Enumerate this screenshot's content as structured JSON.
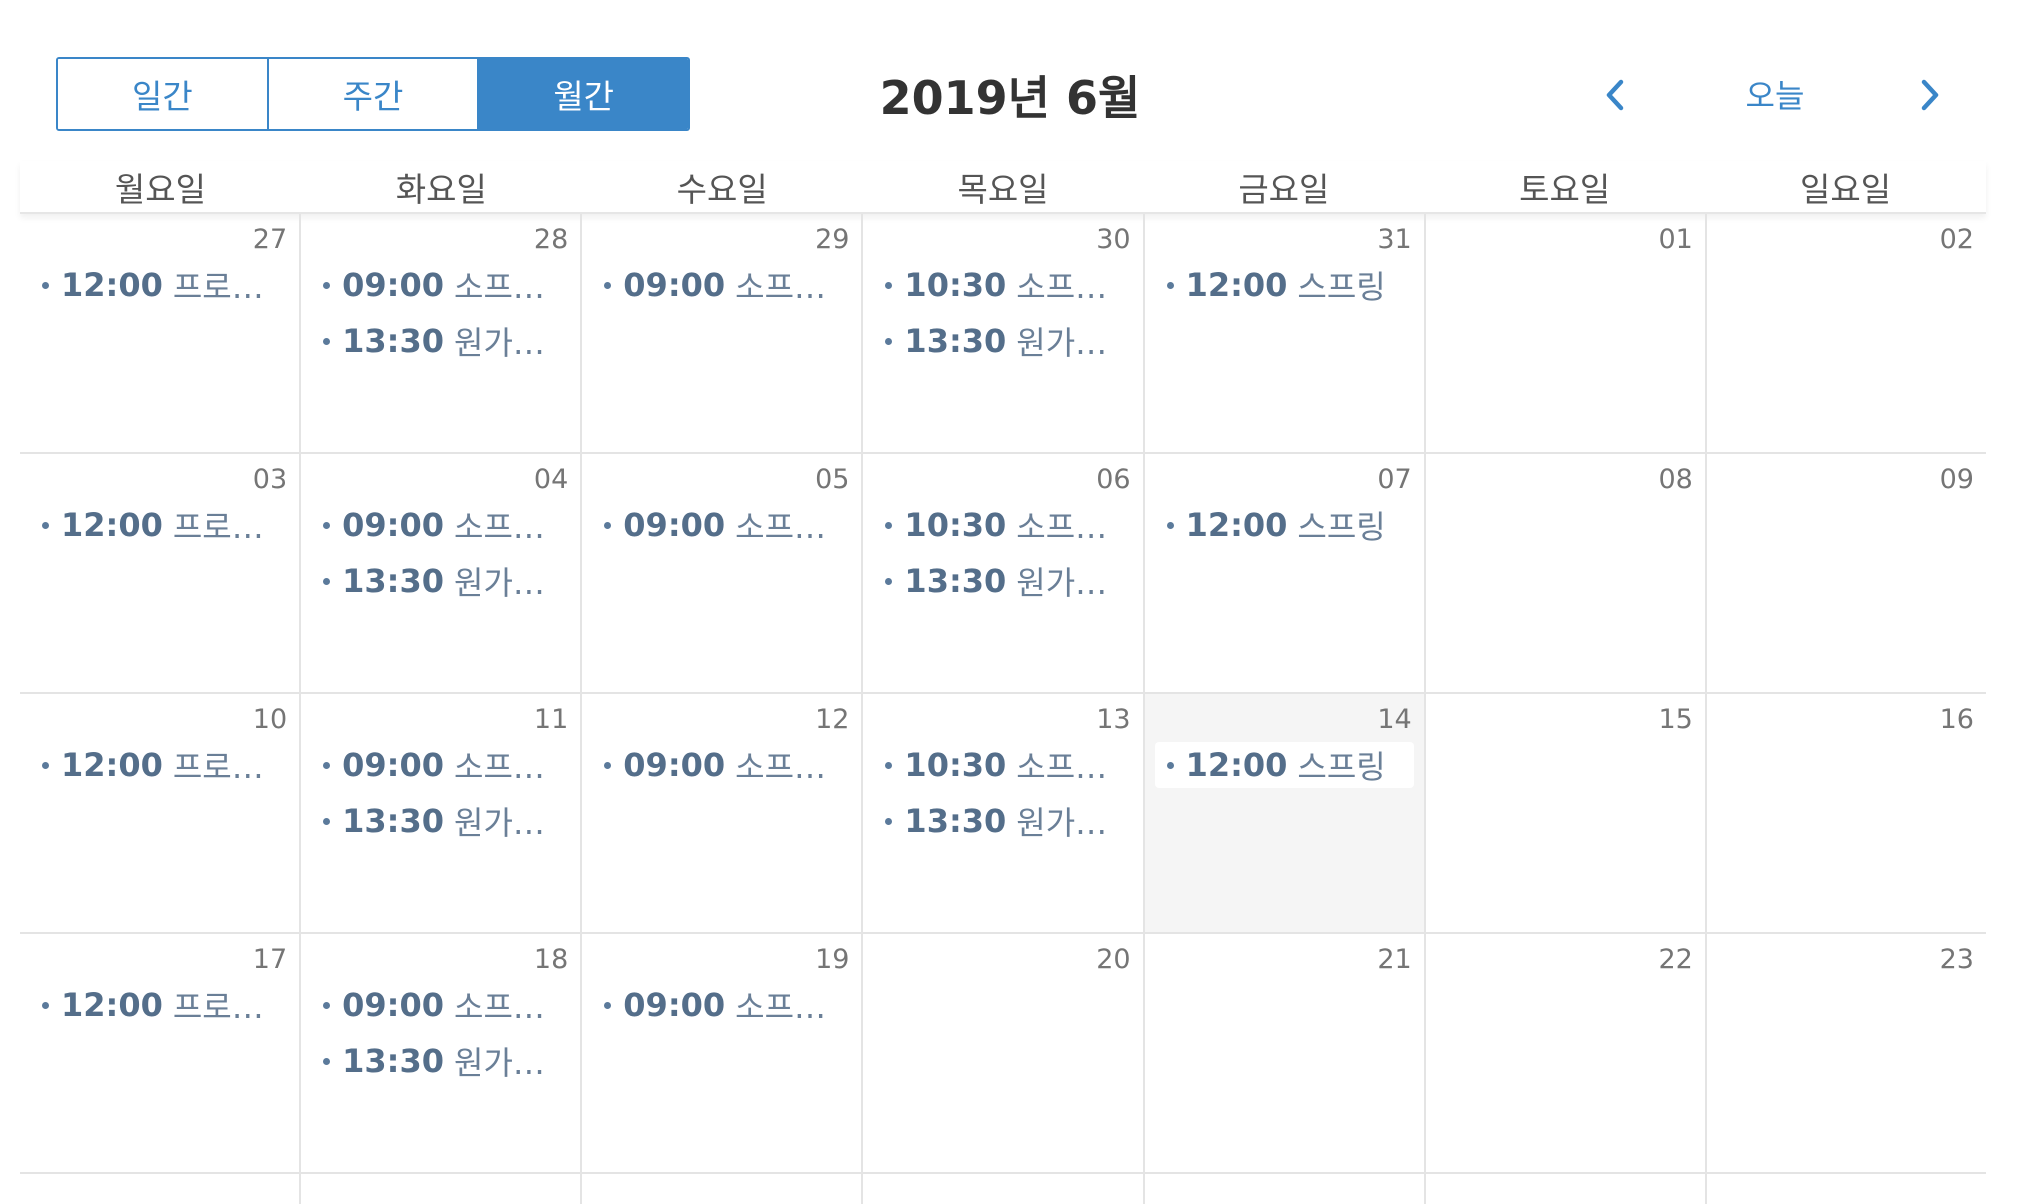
{
  "header": {
    "views": [
      {
        "label": "일간",
        "active": false
      },
      {
        "label": "주간",
        "active": false
      },
      {
        "label": "월간",
        "active": true
      }
    ],
    "title": "2019년 6월",
    "prev_icon": "chevron-left-icon",
    "today_label": "오늘",
    "next_icon": "chevron-right-icon"
  },
  "colors": {
    "accent": "#3a86c8",
    "event_text": "#546e8a",
    "today_bg": "#f5f5f5",
    "grid_line": "#e4e4e4"
  },
  "weekdays": [
    "월요일",
    "화요일",
    "수요일",
    "목요일",
    "금요일",
    "토요일",
    "일요일"
  ],
  "weeks": [
    [
      {
        "day": "27",
        "events": [
          {
            "time": "12:00",
            "title": "프로그래밍"
          }
        ]
      },
      {
        "day": "28",
        "events": [
          {
            "time": "09:00",
            "title": "소프트웨어"
          },
          {
            "time": "13:30",
            "title": "원가회계"
          }
        ]
      },
      {
        "day": "29",
        "events": [
          {
            "time": "09:00",
            "title": "소프트웨어"
          }
        ]
      },
      {
        "day": "30",
        "events": [
          {
            "time": "10:30",
            "title": "소프트웨어"
          },
          {
            "time": "13:30",
            "title": "원가회계"
          }
        ]
      },
      {
        "day": "31",
        "events": [
          {
            "time": "12:00",
            "title": "스프링"
          }
        ]
      },
      {
        "day": "01",
        "events": []
      },
      {
        "day": "02",
        "events": []
      }
    ],
    [
      {
        "day": "03",
        "events": [
          {
            "time": "12:00",
            "title": "프로그래밍"
          }
        ]
      },
      {
        "day": "04",
        "events": [
          {
            "time": "09:00",
            "title": "소프트웨어"
          },
          {
            "time": "13:30",
            "title": "원가회계"
          }
        ]
      },
      {
        "day": "05",
        "events": [
          {
            "time": "09:00",
            "title": "소프트웨어"
          }
        ]
      },
      {
        "day": "06",
        "events": [
          {
            "time": "10:30",
            "title": "소프트웨어"
          },
          {
            "time": "13:30",
            "title": "원가회계"
          }
        ]
      },
      {
        "day": "07",
        "events": [
          {
            "time": "12:00",
            "title": "스프링"
          }
        ]
      },
      {
        "day": "08",
        "events": []
      },
      {
        "day": "09",
        "events": []
      }
    ],
    [
      {
        "day": "10",
        "events": [
          {
            "time": "12:00",
            "title": "프로그래밍"
          }
        ]
      },
      {
        "day": "11",
        "events": [
          {
            "time": "09:00",
            "title": "소프트웨어"
          },
          {
            "time": "13:30",
            "title": "원가회계"
          }
        ]
      },
      {
        "day": "12",
        "events": [
          {
            "time": "09:00",
            "title": "소프트웨어"
          }
        ]
      },
      {
        "day": "13",
        "events": [
          {
            "time": "10:30",
            "title": "소프트웨어"
          },
          {
            "time": "13:30",
            "title": "원가회계"
          }
        ]
      },
      {
        "day": "14",
        "today": true,
        "events": [
          {
            "time": "12:00",
            "title": "스프링"
          }
        ]
      },
      {
        "day": "15",
        "events": []
      },
      {
        "day": "16",
        "events": []
      }
    ],
    [
      {
        "day": "17",
        "events": [
          {
            "time": "12:00",
            "title": "프로그래밍"
          }
        ]
      },
      {
        "day": "18",
        "events": [
          {
            "time": "09:00",
            "title": "소프트웨어"
          },
          {
            "time": "13:30",
            "title": "원가회계"
          }
        ]
      },
      {
        "day": "19",
        "events": [
          {
            "time": "09:00",
            "title": "소프트웨어"
          }
        ]
      },
      {
        "day": "20",
        "events": []
      },
      {
        "day": "21",
        "events": []
      },
      {
        "day": "22",
        "events": []
      },
      {
        "day": "23",
        "events": []
      }
    ]
  ]
}
